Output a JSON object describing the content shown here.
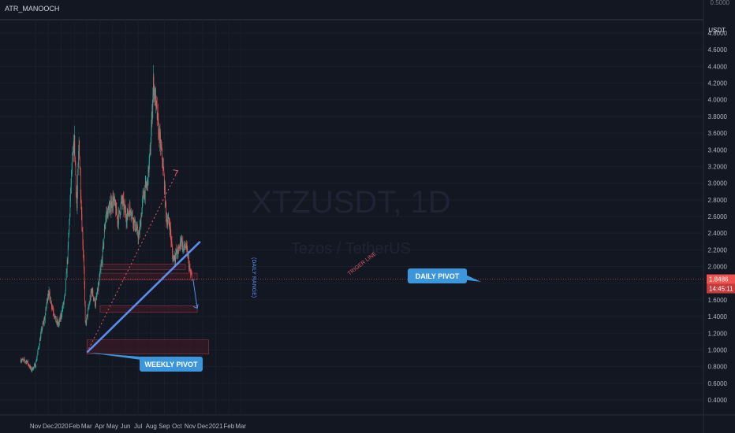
{
  "header": {
    "author": "ATR_MANOOCH",
    "currency": "USDT",
    "top_price": "0.5000"
  },
  "watermark": {
    "symbol": "XTZUSDT, 1D",
    "name": "Tezos / TetherUS"
  },
  "price_badges": {
    "last_price": "1.8486",
    "countdown": "14:45:11"
  },
  "colors": {
    "background": "#131722",
    "up": "#26a69a",
    "down": "#ef5350",
    "trendline": "#5b8cf0",
    "callout": "#3c96dc",
    "zone_fill": "#3a1a24",
    "zone_stroke": "#8a3a44",
    "trigger": "#e05a6a"
  },
  "annotations": {
    "weekly_pivot": "WEEKLY PIVOT",
    "daily_pivot": "DAILY PIVOT",
    "trigger_line": "TRIGER LINE",
    "daily_range": "(DAILY RANGE)"
  },
  "chart_data": {
    "type": "candlestick",
    "symbol": "XTZUSDT",
    "timeframe": "1D",
    "y_axis": {
      "ylim": [
        0.37,
        4.85
      ],
      "ticks": [
        "4.8000",
        "4.6000",
        "4.4000",
        "4.2000",
        "4.0000",
        "3.8000",
        "3.6000",
        "3.4000",
        "3.2000",
        "3.0000",
        "2.8000",
        "2.6000",
        "2.4000",
        "2.2000",
        "2.0000",
        "1.8000",
        "1.6000",
        "1.4000",
        "1.2000",
        "1.0000",
        "0.8000",
        "0.6000",
        "0.4000"
      ]
    },
    "x_axis": {
      "tick_labels": [
        "Nov",
        "Dec",
        "2020",
        "Feb",
        "Mar",
        "Apr",
        "May",
        "Jun",
        "Jul",
        "Aug",
        "Sep",
        "Oct",
        "Nov",
        "Dec",
        "2021",
        "Feb",
        "Mar"
      ],
      "tick_days": [
        0,
        30,
        61,
        92,
        121,
        152,
        182,
        213,
        243,
        274,
        305,
        335,
        366,
        396,
        427,
        458,
        486
      ]
    },
    "price_path": [
      {
        "d": -35,
        "p": 0.88
      },
      {
        "d": -20,
        "p": 0.86
      },
      {
        "d": -10,
        "p": 0.76
      },
      {
        "d": 0,
        "p": 0.82
      },
      {
        "d": 8,
        "p": 1.05
      },
      {
        "d": 15,
        "p": 1.25
      },
      {
        "d": 22,
        "p": 1.38
      },
      {
        "d": 30,
        "p": 1.7
      },
      {
        "d": 40,
        "p": 1.52
      },
      {
        "d": 48,
        "p": 1.35
      },
      {
        "d": 55,
        "p": 1.3
      },
      {
        "d": 62,
        "p": 1.45
      },
      {
        "d": 70,
        "p": 1.65
      },
      {
        "d": 77,
        "p": 2.2
      },
      {
        "d": 85,
        "p": 3.1
      },
      {
        "d": 92,
        "p": 3.5
      },
      {
        "d": 98,
        "p": 2.7
      },
      {
        "d": 103,
        "p": 3.5
      },
      {
        "d": 110,
        "p": 2.5
      },
      {
        "d": 115,
        "p": 2.0
      },
      {
        "d": 118,
        "p": 1.3
      },
      {
        "d": 124,
        "p": 1.45
      },
      {
        "d": 133,
        "p": 1.72
      },
      {
        "d": 142,
        "p": 1.55
      },
      {
        "d": 150,
        "p": 1.8
      },
      {
        "d": 158,
        "p": 2.1
      },
      {
        "d": 166,
        "p": 2.6
      },
      {
        "d": 175,
        "p": 2.7
      },
      {
        "d": 185,
        "p": 2.8
      },
      {
        "d": 195,
        "p": 2.55
      },
      {
        "d": 205,
        "p": 2.8
      },
      {
        "d": 215,
        "p": 2.6
      },
      {
        "d": 225,
        "p": 2.7
      },
      {
        "d": 235,
        "p": 2.5
      },
      {
        "d": 245,
        "p": 2.35
      },
      {
        "d": 255,
        "p": 2.85
      },
      {
        "d": 265,
        "p": 3.0
      },
      {
        "d": 272,
        "p": 3.4
      },
      {
        "d": 279,
        "p": 4.2
      },
      {
        "d": 284,
        "p": 4.0
      },
      {
        "d": 292,
        "p": 3.6
      },
      {
        "d": 300,
        "p": 3.3
      },
      {
        "d": 305,
        "p": 3.0
      },
      {
        "d": 309,
        "p": 2.6
      },
      {
        "d": 318,
        "p": 2.5
      },
      {
        "d": 325,
        "p": 2.1
      },
      {
        "d": 333,
        "p": 2.15
      },
      {
        "d": 340,
        "p": 2.2
      },
      {
        "d": 345,
        "p": 2.35
      },
      {
        "d": 350,
        "p": 2.2
      },
      {
        "d": 355,
        "p": 2.25
      },
      {
        "d": 360,
        "p": 2.15
      },
      {
        "d": 365,
        "p": 1.95
      },
      {
        "d": 370,
        "p": 1.85
      }
    ],
    "weekly_pivot_trendline": {
      "from": {
        "d": 122,
        "p": 0.97
      },
      "to": {
        "d": 390,
        "p": 2.3
      }
    },
    "trigger_line": {
      "from": {
        "d": 122,
        "p": 0.97
      },
      "to": {
        "d": 337,
        "p": 3.15
      }
    },
    "projection_arrow": {
      "from": {
        "d": 373,
        "p": 1.85
      },
      "to": {
        "d": 383,
        "p": 1.5
      }
    },
    "zones": [
      {
        "from_d": 153,
        "to_d": 355,
        "low": 1.96,
        "high": 2.03
      },
      {
        "from_d": 153,
        "to_d": 383,
        "low": 1.84,
        "high": 1.92
      },
      {
        "from_d": 153,
        "to_d": 383,
        "low": 1.45,
        "high": 1.53
      },
      {
        "from_d": 122,
        "to_d": 410,
        "low": 0.95,
        "high": 1.12
      }
    ],
    "last_price": 1.8486
  }
}
